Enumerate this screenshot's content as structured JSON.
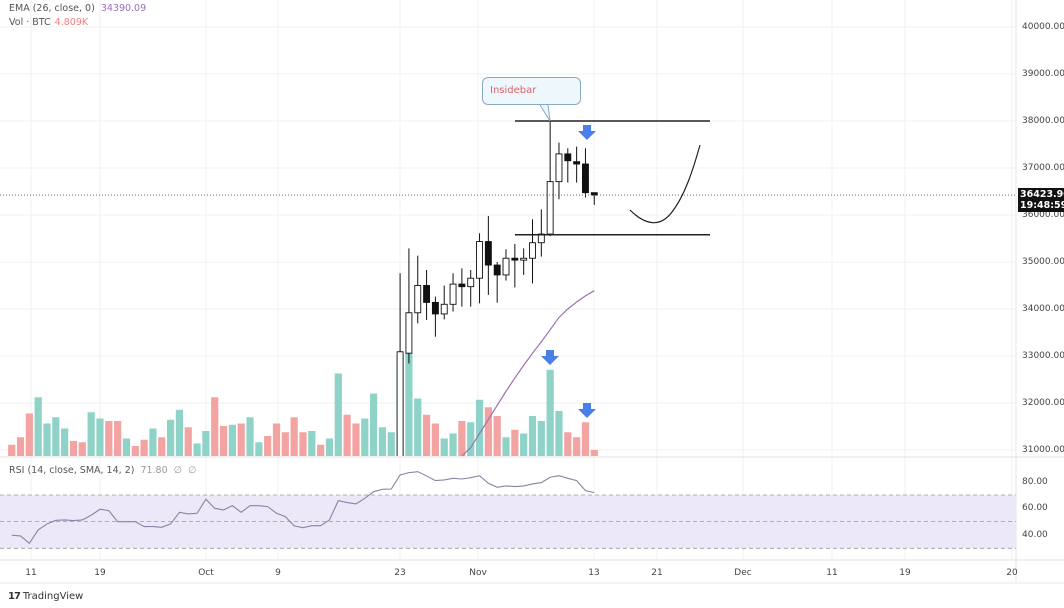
{
  "legend": {
    "ema_label": "EMA (26, close, 0)",
    "ema_value": "34390.09",
    "vol_label": "Vol · BTC",
    "vol_value": "4.809K",
    "rsi_label": "RSI (14, close, SMA, 14, 2)",
    "rsi_value": "71.80",
    "rsi_extra1": "∅",
    "rsi_extra2": "∅"
  },
  "current_price": {
    "price": "36423.90",
    "countdown": "19:48:59"
  },
  "annotation": {
    "callout_text": "Insidebar"
  },
  "branding": {
    "logo_text": "TradingView",
    "logo_mark": "17"
  },
  "colors": {
    "up_volume": "#8fd3c8",
    "down_volume": "#f4a3a3",
    "ema": "#9c6fb5",
    "rsi": "#8e7fa8",
    "rsi_band": "#ece8f7",
    "arrow": "#4a7ee8"
  },
  "chart_data": {
    "type": "candlestick",
    "symbol": "BTC",
    "price_axis": {
      "ticks": [
        "40000.00",
        "39000.00",
        "38000.00",
        "37000.00",
        "36000.00",
        "35000.00",
        "34000.00",
        "33000.00",
        "32000.00",
        "31000.00"
      ],
      "range": [
        30900,
        40300
      ]
    },
    "rsi_axis": {
      "ticks": [
        "80.00",
        "60.00",
        "40.00"
      ],
      "band": [
        30,
        70
      ],
      "midline": 50
    },
    "time_axis": {
      "ticks": [
        "11",
        "19",
        "Oct",
        "9",
        "23",
        "Nov",
        "13",
        "21",
        "Dec",
        "11",
        "19",
        "20"
      ]
    },
    "candles_start_index": 44,
    "candles": [
      [
        30800,
        34760,
        30500,
        33090
      ],
      [
        33060,
        35290,
        32840,
        33920
      ],
      [
        33920,
        35135,
        33695,
        34500
      ],
      [
        34500,
        34830,
        33765,
        34140
      ],
      [
        34140,
        34265,
        33410,
        33895
      ],
      [
        33895,
        34500,
        33780,
        34100
      ],
      [
        34100,
        34760,
        33945,
        34530
      ],
      [
        34530,
        34865,
        34050,
        34475
      ],
      [
        34475,
        34830,
        34050,
        34655
      ],
      [
        34655,
        35610,
        34120,
        35435
      ],
      [
        35435,
        35980,
        34300,
        34935
      ],
      [
        34935,
        35000,
        34135,
        34725
      ],
      [
        34725,
        35270,
        34605,
        35080
      ],
      [
        35080,
        35385,
        34460,
        35040
      ],
      [
        35040,
        35290,
        34725,
        35080
      ],
      [
        35080,
        35910,
        34545,
        35410
      ],
      [
        35410,
        36120,
        35115,
        35595
      ],
      [
        35595,
        37990,
        35550,
        36710
      ],
      [
        36710,
        37540,
        36335,
        37300
      ],
      [
        37300,
        37420,
        36690,
        37155
      ],
      [
        37135,
        37455,
        36690,
        37085
      ],
      [
        37085,
        37420,
        36375,
        36475
      ],
      [
        36475,
        36475,
        36215,
        36424
      ]
    ],
    "volume_k": [
      9,
      15,
      34,
      47,
      26,
      31,
      22,
      12,
      11,
      35,
      30,
      28,
      28,
      14,
      8,
      13,
      22,
      15,
      29,
      37,
      23,
      10,
      20,
      47,
      24,
      25,
      26,
      31,
      11,
      16,
      26,
      19,
      31,
      19,
      20,
      9,
      14,
      66,
      33,
      26,
      30,
      50,
      23,
      19,
      80,
      82,
      46,
      33,
      26,
      14,
      18,
      28,
      27,
      45,
      39,
      32,
      15,
      21,
      18,
      32,
      28,
      69,
      36,
      19,
      15,
      27,
      4.8
    ],
    "volume_up": [
      0,
      0,
      0,
      1,
      1,
      1,
      1,
      0,
      0,
      1,
      1,
      0,
      0,
      1,
      0,
      0,
      1,
      0,
      1,
      1,
      0,
      1,
      1,
      0,
      0,
      1,
      0,
      1,
      1,
      0,
      0,
      0,
      0,
      0,
      1,
      0,
      1,
      1,
      0,
      0,
      1,
      1,
      1,
      1,
      1,
      1,
      1,
      0,
      0,
      1,
      1,
      0,
      1,
      1,
      0,
      0,
      1,
      0,
      1,
      1,
      1,
      1,
      1,
      0,
      0,
      0,
      0
    ],
    "ema": {
      "start_index": 51,
      "values": [
        30800,
        31050,
        31350,
        31650,
        31950,
        32250,
        32530,
        32800,
        33060,
        33300,
        33560,
        33820,
        34000,
        34150,
        34280,
        34390
      ]
    },
    "rsi": [
      39.8,
      39.3,
      33.8,
      43.8,
      48.3,
      51,
      51.3,
      50.8,
      51.3,
      54.8,
      59.3,
      58.3,
      50,
      50,
      50,
      46.3,
      46.3,
      45.8,
      48.3,
      57,
      55.8,
      56.3,
      66.8,
      60,
      58.8,
      62,
      57,
      62,
      62,
      61.3,
      56.3,
      53.8,
      46.8,
      45.5,
      47,
      47,
      51.3,
      65.8,
      64.3,
      63.3,
      67.5,
      72.5,
      74.3,
      74.5,
      85,
      86.8,
      87.5,
      84.3,
      80.8,
      81.3,
      82.5,
      82,
      83,
      84.5,
      78.8,
      75.8,
      76.8,
      76.3,
      76.8,
      78.3,
      79.3,
      83.3,
      84.5,
      82.5,
      80.8,
      73.3,
      71.8
    ],
    "drawings": {
      "range_high": 38000,
      "range_low": 35580
    }
  }
}
